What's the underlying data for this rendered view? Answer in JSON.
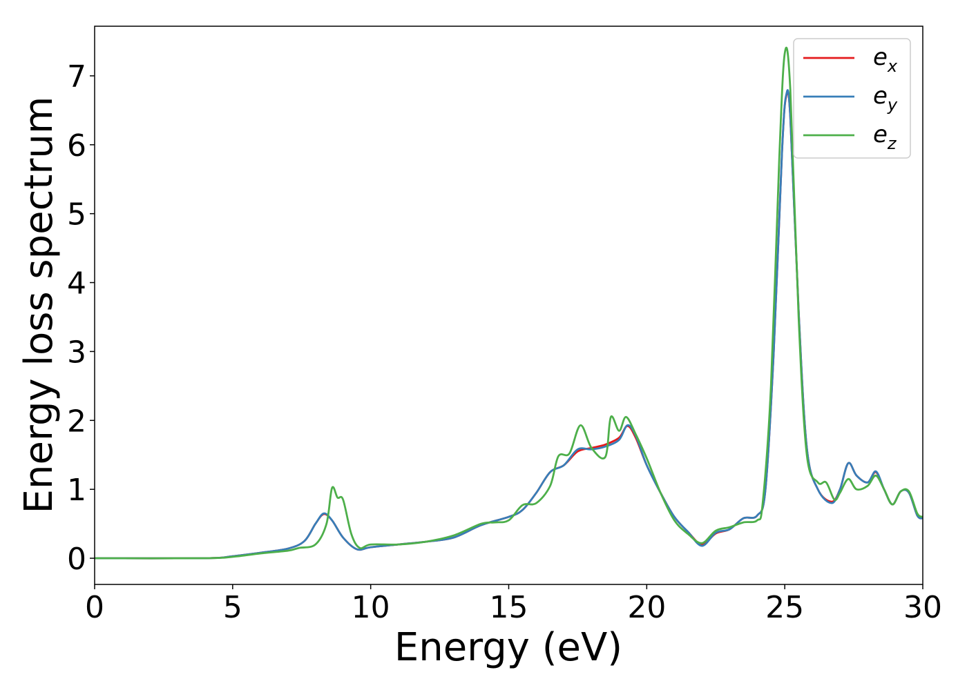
{
  "chart_data": {
    "type": "line",
    "xlabel": "Energy (eV)",
    "ylabel": "Energy loss spectrum",
    "xlim": [
      0,
      30
    ],
    "ylim": [
      -0.38,
      7.72
    ],
    "xticks": [
      0,
      5,
      10,
      15,
      20,
      25,
      30
    ],
    "yticks": [
      0,
      1,
      2,
      3,
      4,
      5,
      6,
      7
    ],
    "grid": false,
    "legend_position": "top-right",
    "series": [
      {
        "name": "e_x",
        "legend_main": "e",
        "legend_sub": "x",
        "color": "#e41a1c",
        "points": [
          [
            0,
            0
          ],
          [
            4,
            0
          ],
          [
            5,
            0.03
          ],
          [
            6,
            0.08
          ],
          [
            7,
            0.14
          ],
          [
            7.6,
            0.25
          ],
          [
            8,
            0.5
          ],
          [
            8.3,
            0.64
          ],
          [
            8.6,
            0.55
          ],
          [
            9,
            0.3
          ],
          [
            9.5,
            0.13
          ],
          [
            10,
            0.16
          ],
          [
            11,
            0.2
          ],
          [
            12,
            0.24
          ],
          [
            13,
            0.3
          ],
          [
            14,
            0.48
          ],
          [
            15,
            0.6
          ],
          [
            15.5,
            0.7
          ],
          [
            16,
            0.95
          ],
          [
            16.5,
            1.25
          ],
          [
            17,
            1.35
          ],
          [
            17.5,
            1.55
          ],
          [
            18,
            1.6
          ],
          [
            18.5,
            1.65
          ],
          [
            19,
            1.75
          ],
          [
            19.3,
            1.92
          ],
          [
            19.6,
            1.75
          ],
          [
            20,
            1.35
          ],
          [
            20.5,
            0.95
          ],
          [
            21,
            0.6
          ],
          [
            21.5,
            0.38
          ],
          [
            22,
            0.2
          ],
          [
            22.5,
            0.36
          ],
          [
            23,
            0.42
          ],
          [
            23.5,
            0.58
          ],
          [
            24,
            0.62
          ],
          [
            24.3,
            1.0
          ],
          [
            24.6,
            3.0
          ],
          [
            24.9,
            5.9
          ],
          [
            25.05,
            6.7
          ],
          [
            25.2,
            6.4
          ],
          [
            25.5,
            3.6
          ],
          [
            25.8,
            1.6
          ],
          [
            26.2,
            1.0
          ],
          [
            26.7,
            0.82
          ],
          [
            27,
            1.0
          ],
          [
            27.3,
            1.38
          ],
          [
            27.6,
            1.2
          ],
          [
            28,
            1.1
          ],
          [
            28.3,
            1.25
          ],
          [
            28.6,
            1.0
          ],
          [
            28.9,
            0.78
          ],
          [
            29.2,
            0.97
          ],
          [
            29.5,
            0.95
          ],
          [
            29.8,
            0.62
          ],
          [
            30,
            0.58
          ]
        ]
      },
      {
        "name": "e_y",
        "legend_main": "e",
        "legend_sub": "y",
        "color": "#377eb8",
        "points": [
          [
            0,
            0
          ],
          [
            4,
            0
          ],
          [
            5,
            0.03
          ],
          [
            6,
            0.08
          ],
          [
            7,
            0.14
          ],
          [
            7.6,
            0.25
          ],
          [
            8,
            0.5
          ],
          [
            8.3,
            0.65
          ],
          [
            8.6,
            0.55
          ],
          [
            9,
            0.3
          ],
          [
            9.5,
            0.13
          ],
          [
            10,
            0.16
          ],
          [
            11,
            0.2
          ],
          [
            12,
            0.24
          ],
          [
            13,
            0.3
          ],
          [
            14,
            0.48
          ],
          [
            15,
            0.6
          ],
          [
            15.5,
            0.7
          ],
          [
            16,
            0.95
          ],
          [
            16.5,
            1.25
          ],
          [
            17,
            1.35
          ],
          [
            17.5,
            1.58
          ],
          [
            18,
            1.58
          ],
          [
            18.5,
            1.62
          ],
          [
            19,
            1.72
          ],
          [
            19.3,
            1.93
          ],
          [
            19.6,
            1.78
          ],
          [
            20,
            1.35
          ],
          [
            20.5,
            0.95
          ],
          [
            21,
            0.6
          ],
          [
            21.5,
            0.38
          ],
          [
            22,
            0.18
          ],
          [
            22.5,
            0.37
          ],
          [
            23,
            0.42
          ],
          [
            23.5,
            0.58
          ],
          [
            24,
            0.62
          ],
          [
            24.3,
            1.0
          ],
          [
            24.6,
            3.0
          ],
          [
            24.9,
            5.9
          ],
          [
            25.05,
            6.72
          ],
          [
            25.2,
            6.4
          ],
          [
            25.5,
            3.6
          ],
          [
            25.8,
            1.6
          ],
          [
            26.2,
            1.0
          ],
          [
            26.7,
            0.8
          ],
          [
            27,
            1.0
          ],
          [
            27.3,
            1.38
          ],
          [
            27.6,
            1.2
          ],
          [
            28,
            1.1
          ],
          [
            28.3,
            1.26
          ],
          [
            28.6,
            1.0
          ],
          [
            28.9,
            0.78
          ],
          [
            29.2,
            0.97
          ],
          [
            29.5,
            0.95
          ],
          [
            29.8,
            0.62
          ],
          [
            30,
            0.58
          ]
        ]
      },
      {
        "name": "e_z",
        "legend_main": "e",
        "legend_sub": "z",
        "color": "#4daf4a",
        "points": [
          [
            0,
            0
          ],
          [
            4,
            0
          ],
          [
            5,
            0.02
          ],
          [
            6,
            0.07
          ],
          [
            7,
            0.11
          ],
          [
            7.4,
            0.15
          ],
          [
            8,
            0.2
          ],
          [
            8.4,
            0.5
          ],
          [
            8.6,
            1.02
          ],
          [
            8.8,
            0.88
          ],
          [
            9,
            0.85
          ],
          [
            9.3,
            0.35
          ],
          [
            9.6,
            0.15
          ],
          [
            10,
            0.2
          ],
          [
            11,
            0.2
          ],
          [
            12,
            0.24
          ],
          [
            13,
            0.33
          ],
          [
            14,
            0.5
          ],
          [
            14.5,
            0.52
          ],
          [
            15,
            0.55
          ],
          [
            15.5,
            0.77
          ],
          [
            16,
            0.8
          ],
          [
            16.5,
            1.05
          ],
          [
            16.8,
            1.48
          ],
          [
            17.2,
            1.52
          ],
          [
            17.6,
            1.93
          ],
          [
            18,
            1.6
          ],
          [
            18.5,
            1.47
          ],
          [
            18.7,
            2.05
          ],
          [
            19,
            1.85
          ],
          [
            19.25,
            2.05
          ],
          [
            19.6,
            1.8
          ],
          [
            20,
            1.45
          ],
          [
            20.5,
            0.95
          ],
          [
            21,
            0.55
          ],
          [
            21.5,
            0.35
          ],
          [
            22,
            0.22
          ],
          [
            22.5,
            0.4
          ],
          [
            23,
            0.45
          ],
          [
            23.5,
            0.52
          ],
          [
            24,
            0.55
          ],
          [
            24.2,
            0.8
          ],
          [
            24.5,
            2.5
          ],
          [
            24.8,
            5.8
          ],
          [
            25.0,
            7.33
          ],
          [
            25.2,
            6.8
          ],
          [
            25.5,
            3.5
          ],
          [
            25.8,
            1.5
          ],
          [
            26.2,
            1.1
          ],
          [
            26.5,
            1.1
          ],
          [
            26.8,
            0.85
          ],
          [
            27,
            0.95
          ],
          [
            27.3,
            1.15
          ],
          [
            27.6,
            1.0
          ],
          [
            28,
            1.05
          ],
          [
            28.3,
            1.2
          ],
          [
            28.6,
            1.0
          ],
          [
            28.9,
            0.78
          ],
          [
            29.2,
            0.97
          ],
          [
            29.5,
            0.97
          ],
          [
            29.8,
            0.65
          ],
          [
            30,
            0.6
          ]
        ]
      }
    ]
  }
}
